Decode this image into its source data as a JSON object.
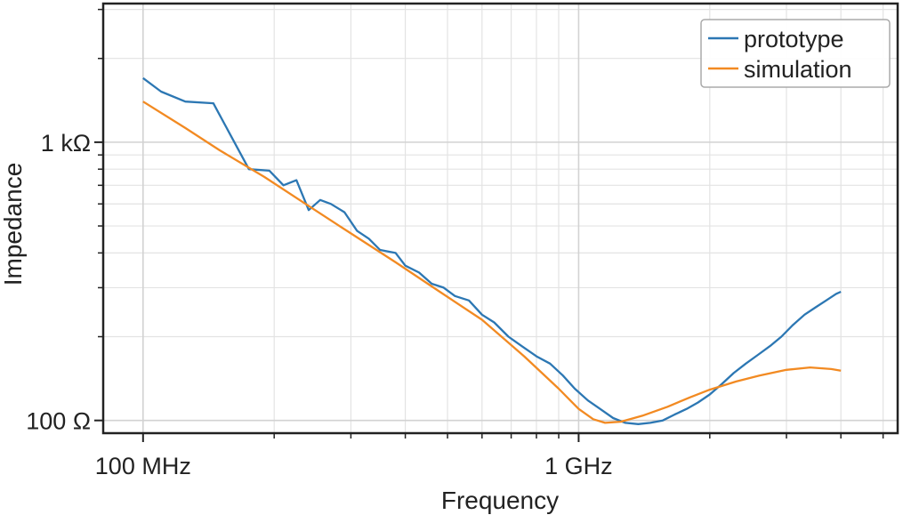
{
  "chart_data": {
    "type": "line",
    "xlabel": "Frequency",
    "ylabel": "Impedance",
    "xscale": "log",
    "yscale": "log",
    "xlim": [
      81000000,
      5400000000
    ],
    "ylim": [
      90,
      3150
    ],
    "x_major_ticks": [
      {
        "value": 100000000,
        "label": "100 MHz"
      },
      {
        "value": 1000000000,
        "label": "1 GHz"
      }
    ],
    "y_major_ticks": [
      {
        "value": 100,
        "label": "100 Ω"
      },
      {
        "value": 1000,
        "label": "1 kΩ"
      }
    ],
    "x_minor_ticks": [
      200000000,
      300000000,
      400000000,
      500000000,
      600000000,
      700000000,
      800000000,
      900000000,
      2000000000,
      3000000000,
      4000000000,
      5000000000
    ],
    "y_minor_ticks": [
      200,
      300,
      400,
      500,
      600,
      700,
      800,
      900,
      2000,
      3000
    ],
    "grid": true,
    "legend_position": "top-right",
    "series": [
      {
        "name": "prototype",
        "color": "#2c77b3",
        "x": [
          100000000,
          110000000,
          125000000,
          145000000,
          175000000,
          195000000,
          210000000,
          225000000,
          240000000,
          255000000,
          270000000,
          290000000,
          310000000,
          330000000,
          350000000,
          380000000,
          400000000,
          430000000,
          460000000,
          490000000,
          520000000,
          560000000,
          600000000,
          640000000,
          690000000,
          740000000,
          800000000,
          860000000,
          920000000,
          980000000,
          1050000000,
          1120000000,
          1200000000,
          1280000000,
          1370000000,
          1460000000,
          1560000000,
          1660000000,
          1770000000,
          1880000000,
          2000000000,
          2130000000,
          2270000000,
          2420000000,
          2580000000,
          2750000000,
          2920000000,
          3100000000,
          3300000000,
          3500000000,
          3700000000,
          3900000000,
          4000000000
        ],
        "values": [
          1700,
          1520,
          1400,
          1380,
          800,
          790,
          700,
          730,
          570,
          620,
          600,
          560,
          480,
          450,
          410,
          400,
          360,
          340,
          310,
          300,
          280,
          270,
          240,
          225,
          200,
          185,
          170,
          160,
          145,
          130,
          118,
          110,
          102,
          98,
          97,
          98,
          100,
          105,
          110,
          116,
          124,
          135,
          148,
          160,
          172,
          185,
          200,
          220,
          240,
          255,
          270,
          285,
          290
        ]
      },
      {
        "name": "simulation",
        "color": "#f28a22",
        "x": [
          100000000,
          125000000,
          150000000,
          190000000,
          240000000,
          300000000,
          380000000,
          480000000,
          600000000,
          750000000,
          900000000,
          1000000000,
          1080000000,
          1150000000,
          1250000000,
          1400000000,
          1600000000,
          1800000000,
          2000000000,
          2300000000,
          2600000000,
          3000000000,
          3400000000,
          3800000000,
          4000000000
        ],
        "values": [
          1400,
          1125,
          935,
          750,
          590,
          470,
          370,
          290,
          230,
          170,
          130,
          110,
          101,
          98,
          99,
          104,
          112,
          121,
          129,
          138,
          145,
          152,
          155,
          153,
          151
        ]
      }
    ]
  }
}
